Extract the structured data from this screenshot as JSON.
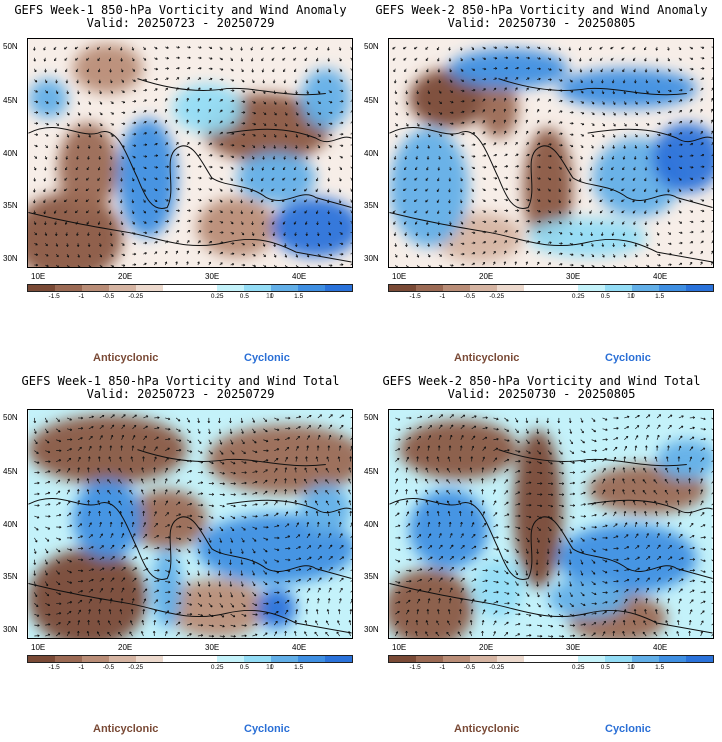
{
  "panels": [
    {
      "title_line1": "GEFS Week-1 850-hPa Vorticity and Wind Anomaly",
      "title_line2": "Valid: 20250723 - 20250729",
      "week": 1,
      "field": "anomaly"
    },
    {
      "title_line1": "GEFS Week-2 850-hPa Vorticity and Wind Anomaly",
      "title_line2": "Valid: 20250730 - 20250805",
      "week": 2,
      "field": "anomaly"
    },
    {
      "title_line1": "GEFS Week-1 850-hPa Vorticity and Wind Total",
      "title_line2": "Valid: 20250723 - 20250729",
      "week": 1,
      "field": "total"
    },
    {
      "title_line1": "GEFS Week-2 850-hPa Vorticity and Wind Total",
      "title_line2": "Valid: 20250730 - 20250805",
      "week": 2,
      "field": "total"
    }
  ],
  "lat_labels": [
    "50N",
    "45N",
    "40N",
    "35N",
    "30N"
  ],
  "lon_labels": [
    "10E",
    "20E",
    "30E",
    "40E"
  ],
  "colorbar": {
    "colors": [
      "#7a4a36",
      "#9b6a54",
      "#b98d77",
      "#d5b4a2",
      "#ecd9cd",
      "#ffffff",
      "#ffffff",
      "#c4f2fa",
      "#93dcf5",
      "#62afe8",
      "#3f8fe2",
      "#2a72da"
    ],
    "tick_labels": [
      "-1.5",
      "-1",
      "-0.5",
      "-0.25",
      "0.25",
      "0.5",
      "1",
      "1.5"
    ],
    "unit_label": "10"
  },
  "legend": {
    "anticyclonic": "Anticyclonic",
    "cyclonic": "Cyclonic",
    "anticyclonic_color": "#7a4a36",
    "cyclonic_color": "#2a6fd6"
  },
  "map_extent": {
    "lon_min": 9,
    "lon_max": 46,
    "lat_min": 29,
    "lat_max": 51
  }
}
